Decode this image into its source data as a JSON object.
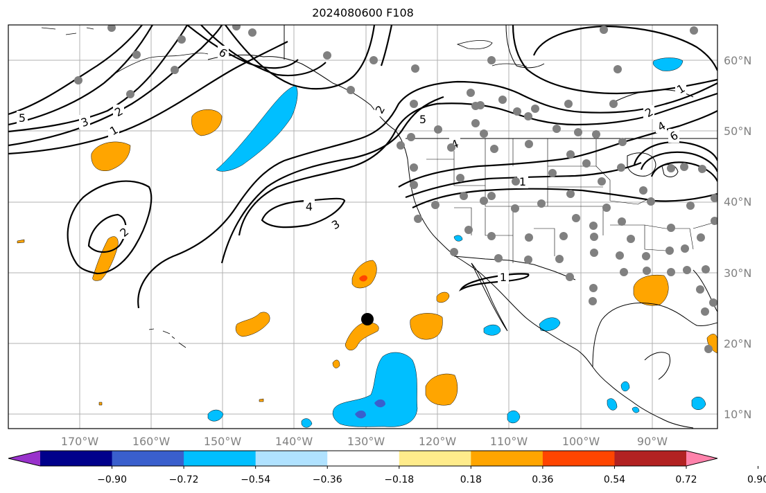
{
  "title": "2024080600 F108",
  "lat_labels": [
    "60°N",
    "50°N",
    "40°N",
    "30°N",
    "20°N",
    "10°N"
  ],
  "lon_labels": [
    "170°W",
    "160°W",
    "150°W",
    "140°W",
    "130°W",
    "120°W",
    "110°W",
    "100°W",
    "90°W"
  ],
  "colorbar": {
    "tick_labels": [
      "−0.90",
      "−0.72",
      "−0.54",
      "−0.36",
      "−0.18",
      "0.18",
      "0.36",
      "0.54",
      "0.72",
      "0.90"
    ],
    "colors": [
      "#9932cc",
      "#00008b",
      "#3a5fcd",
      "#00bfff",
      "#b0e2ff",
      "#ffffff",
      "#ffec8b",
      "#ffa500",
      "#ff4500",
      "#b22222",
      "#ff82ab"
    ]
  },
  "contour_labels": [
    "2",
    "3",
    "5",
    "1",
    "2",
    "6",
    "4",
    "3",
    "2",
    "5",
    "4",
    "1",
    "1",
    "1",
    "2",
    "4",
    "6"
  ],
  "colors": {
    "positive_fill": "#ffa500",
    "negative_fill": "#00bfff",
    "contour_line": "#000000",
    "station_dot": "#808080",
    "marker": "#000000",
    "grid": "#b0b0b0"
  }
}
